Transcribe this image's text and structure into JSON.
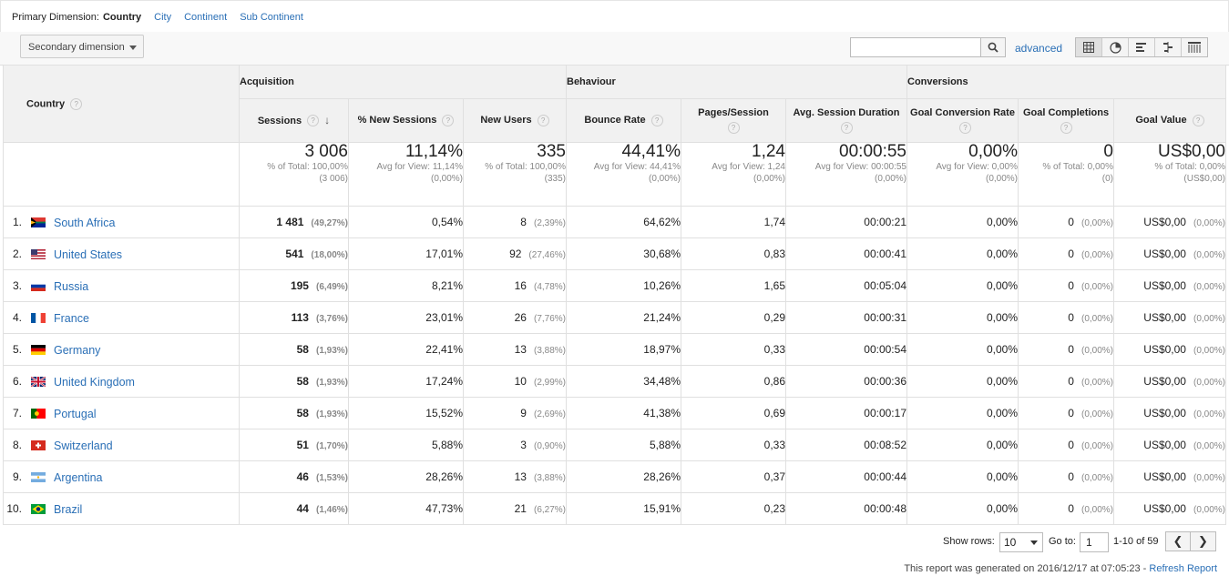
{
  "primary_dimension": {
    "label": "Primary Dimension:",
    "active": "Country",
    "options": [
      "City",
      "Continent",
      "Sub Continent"
    ]
  },
  "toolbar": {
    "secondary_dimension": "Secondary dimension",
    "search_value": "",
    "advanced": "advanced",
    "view_icons": [
      "table-view-icon",
      "pie-view-icon",
      "performance-view-icon",
      "comparison-view-icon",
      "pivot-view-icon"
    ]
  },
  "table": {
    "dimension_header": "Country",
    "groups": [
      "Acquisition",
      "Behaviour",
      "Conversions"
    ],
    "metrics": [
      "Sessions",
      "% New Sessions",
      "New Users",
      "Bounce Rate",
      "Pages/Session",
      "Avg. Session Duration",
      "Goal Conversion Rate",
      "Goal Completions",
      "Goal Value"
    ],
    "totals": [
      {
        "value": "3 006",
        "sub1": "% of Total: 100,00%",
        "sub2": "(3 006)"
      },
      {
        "value": "11,14%",
        "sub1": "Avg for View: 11,14%",
        "sub2": "(0,00%)"
      },
      {
        "value": "335",
        "sub1": "% of Total: 100,00%",
        "sub2": "(335)"
      },
      {
        "value": "44,41%",
        "sub1": "Avg for View: 44,41%",
        "sub2": "(0,00%)"
      },
      {
        "value": "1,24",
        "sub1": "Avg for View: 1,24",
        "sub2": "(0,00%)"
      },
      {
        "value": "00:00:55",
        "sub1": "Avg for View: 00:00:55",
        "sub2": "(0,00%)"
      },
      {
        "value": "0,00%",
        "sub1": "Avg for View: 0,00%",
        "sub2": "(0,00%)"
      },
      {
        "value": "0",
        "sub1": "% of Total: 0,00%",
        "sub2": "(0)"
      },
      {
        "value": "US$0,00",
        "sub1": "% of Total: 0,00%",
        "sub2": "(US$0,00)"
      }
    ],
    "rows": [
      {
        "rank": "1.",
        "country": "South Africa",
        "flag": "za",
        "sessions": "1 481",
        "sessions_pct": "(49,27%)",
        "new_sessions": "0,54%",
        "new_users": "8",
        "new_users_pct": "(2,39%)",
        "bounce": "64,62%",
        "pages": "1,74",
        "duration": "00:00:21",
        "conv_rate": "0,00%",
        "completions": "0",
        "completions_pct": "(0,00%)",
        "value": "US$0,00",
        "value_pct": "(0,00%)"
      },
      {
        "rank": "2.",
        "country": "United States",
        "flag": "us",
        "sessions": "541",
        "sessions_pct": "(18,00%)",
        "new_sessions": "17,01%",
        "new_users": "92",
        "new_users_pct": "(27,46%)",
        "bounce": "30,68%",
        "pages": "0,83",
        "duration": "00:00:41",
        "conv_rate": "0,00%",
        "completions": "0",
        "completions_pct": "(0,00%)",
        "value": "US$0,00",
        "value_pct": "(0,00%)"
      },
      {
        "rank": "3.",
        "country": "Russia",
        "flag": "ru",
        "sessions": "195",
        "sessions_pct": "(6,49%)",
        "new_sessions": "8,21%",
        "new_users": "16",
        "new_users_pct": "(4,78%)",
        "bounce": "10,26%",
        "pages": "1,65",
        "duration": "00:05:04",
        "conv_rate": "0,00%",
        "completions": "0",
        "completions_pct": "(0,00%)",
        "value": "US$0,00",
        "value_pct": "(0,00%)"
      },
      {
        "rank": "4.",
        "country": "France",
        "flag": "fr",
        "sessions": "113",
        "sessions_pct": "(3,76%)",
        "new_sessions": "23,01%",
        "new_users": "26",
        "new_users_pct": "(7,76%)",
        "bounce": "21,24%",
        "pages": "0,29",
        "duration": "00:00:31",
        "conv_rate": "0,00%",
        "completions": "0",
        "completions_pct": "(0,00%)",
        "value": "US$0,00",
        "value_pct": "(0,00%)"
      },
      {
        "rank": "5.",
        "country": "Germany",
        "flag": "de",
        "sessions": "58",
        "sessions_pct": "(1,93%)",
        "new_sessions": "22,41%",
        "new_users": "13",
        "new_users_pct": "(3,88%)",
        "bounce": "18,97%",
        "pages": "0,33",
        "duration": "00:00:54",
        "conv_rate": "0,00%",
        "completions": "0",
        "completions_pct": "(0,00%)",
        "value": "US$0,00",
        "value_pct": "(0,00%)"
      },
      {
        "rank": "6.",
        "country": "United Kingdom",
        "flag": "gb",
        "sessions": "58",
        "sessions_pct": "(1,93%)",
        "new_sessions": "17,24%",
        "new_users": "10",
        "new_users_pct": "(2,99%)",
        "bounce": "34,48%",
        "pages": "0,86",
        "duration": "00:00:36",
        "conv_rate": "0,00%",
        "completions": "0",
        "completions_pct": "(0,00%)",
        "value": "US$0,00",
        "value_pct": "(0,00%)"
      },
      {
        "rank": "7.",
        "country": "Portugal",
        "flag": "pt",
        "sessions": "58",
        "sessions_pct": "(1,93%)",
        "new_sessions": "15,52%",
        "new_users": "9",
        "new_users_pct": "(2,69%)",
        "bounce": "41,38%",
        "pages": "0,69",
        "duration": "00:00:17",
        "conv_rate": "0,00%",
        "completions": "0",
        "completions_pct": "(0,00%)",
        "value": "US$0,00",
        "value_pct": "(0,00%)"
      },
      {
        "rank": "8.",
        "country": "Switzerland",
        "flag": "ch",
        "sessions": "51",
        "sessions_pct": "(1,70%)",
        "new_sessions": "5,88%",
        "new_users": "3",
        "new_users_pct": "(0,90%)",
        "bounce": "5,88%",
        "pages": "0,33",
        "duration": "00:08:52",
        "conv_rate": "0,00%",
        "completions": "0",
        "completions_pct": "(0,00%)",
        "value": "US$0,00",
        "value_pct": "(0,00%)"
      },
      {
        "rank": "9.",
        "country": "Argentina",
        "flag": "ar",
        "sessions": "46",
        "sessions_pct": "(1,53%)",
        "new_sessions": "28,26%",
        "new_users": "13",
        "new_users_pct": "(3,88%)",
        "bounce": "28,26%",
        "pages": "0,37",
        "duration": "00:00:44",
        "conv_rate": "0,00%",
        "completions": "0",
        "completions_pct": "(0,00%)",
        "value": "US$0,00",
        "value_pct": "(0,00%)"
      },
      {
        "rank": "10.",
        "country": "Brazil",
        "flag": "br",
        "sessions": "44",
        "sessions_pct": "(1,46%)",
        "new_sessions": "47,73%",
        "new_users": "21",
        "new_users_pct": "(6,27%)",
        "bounce": "15,91%",
        "pages": "0,23",
        "duration": "00:00:48",
        "conv_rate": "0,00%",
        "completions": "0",
        "completions_pct": "(0,00%)",
        "value": "US$0,00",
        "value_pct": "(0,00%)"
      }
    ]
  },
  "footer": {
    "show_rows_label": "Show rows:",
    "show_rows_value": "10",
    "goto_label": "Go to:",
    "goto_value": "1",
    "range": "1-10 of 59",
    "prev": "❮",
    "next": "❯",
    "generated": "This report was generated on 2016/12/17 at 07:05:23 -",
    "refresh": "Refresh Report"
  },
  "colors": {
    "link": "#2a6fb6",
    "header_bg": "#f1f1f1"
  }
}
